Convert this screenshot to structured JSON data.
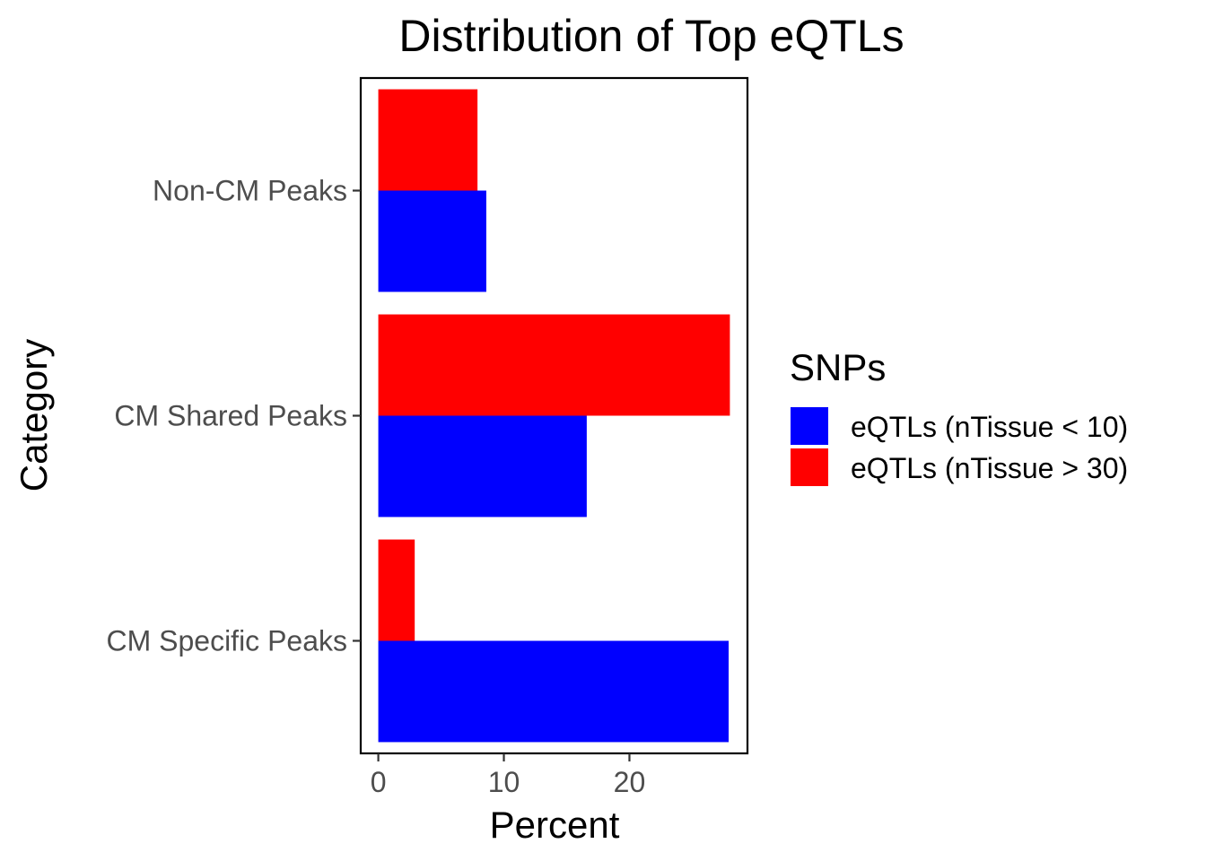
{
  "chart_data": {
    "type": "bar",
    "orientation": "horizontal",
    "title": "Distribution of Top eQTLs",
    "xlabel": "Percent",
    "ylabel": "Category",
    "categories": [
      "Non-CM Peaks",
      "CM Shared Peaks",
      "CM Specific Peaks"
    ],
    "series": [
      {
        "name": "eQTLs (nTissue < 10)",
        "color": "#0000ff",
        "values": [
          8.6,
          16.6,
          27.9
        ]
      },
      {
        "name": "eQTLs (nTissue > 30)",
        "color": "#ff0000",
        "values": [
          7.9,
          28.0,
          2.9
        ]
      }
    ],
    "xticks": [
      0,
      10,
      20
    ],
    "xlim": [
      -1.4,
      29.4
    ],
    "grid": false,
    "legend": {
      "title": "SNPs",
      "position": "right"
    }
  }
}
